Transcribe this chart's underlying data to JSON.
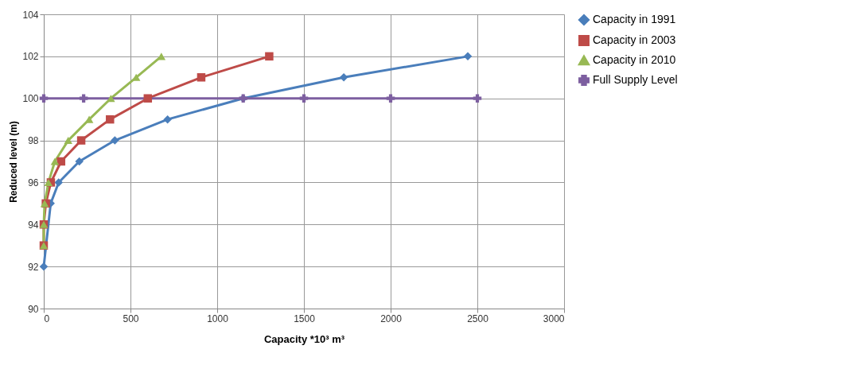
{
  "chart_data": {
    "type": "line",
    "xlabel": "Capacity *10³ m³",
    "ylabel": "Reduced level (m)",
    "xlim": [
      0,
      3000
    ],
    "xticks": [
      0,
      500,
      1000,
      1500,
      2000,
      2500,
      3000
    ],
    "ylim": [
      90,
      104
    ],
    "yticks": [
      90,
      92,
      94,
      96,
      98,
      100,
      102,
      104
    ],
    "grid": true,
    "legend": "right",
    "series": [
      {
        "name": "Capacity in 1991",
        "color": "#4a7ebb",
        "marker": "diamond",
        "x": [
          0,
          40,
          86,
          205,
          410,
          714,
          1150,
          1730,
          2445
        ],
        "values": [
          92,
          95,
          96,
          97,
          98,
          99,
          100,
          101,
          102
        ]
      },
      {
        "name": "Capacity in  2003",
        "color": "#be4b48",
        "marker": "square",
        "x": [
          0,
          0,
          12,
          41,
          100,
          216,
          382,
          600,
          908,
          1300
        ],
        "values": [
          93,
          94,
          95,
          96,
          97,
          98,
          99,
          100,
          101,
          102
        ]
      },
      {
        "name": "Capacity in 2010",
        "color": "#98b954",
        "marker": "triangle",
        "x": [
          0,
          0,
          5,
          27,
          64,
          141,
          262,
          387,
          533,
          678
        ],
        "values": [
          93,
          94,
          95,
          96,
          97,
          98,
          99,
          100,
          101,
          102
        ]
      },
      {
        "name": "Full Supply Level",
        "color": "#7d5fa0",
        "marker": "cross",
        "x": [
          0,
          230,
          1150,
          1500,
          2000,
          2500
        ],
        "values": [
          100,
          100,
          100,
          100,
          100,
          100
        ]
      }
    ]
  }
}
